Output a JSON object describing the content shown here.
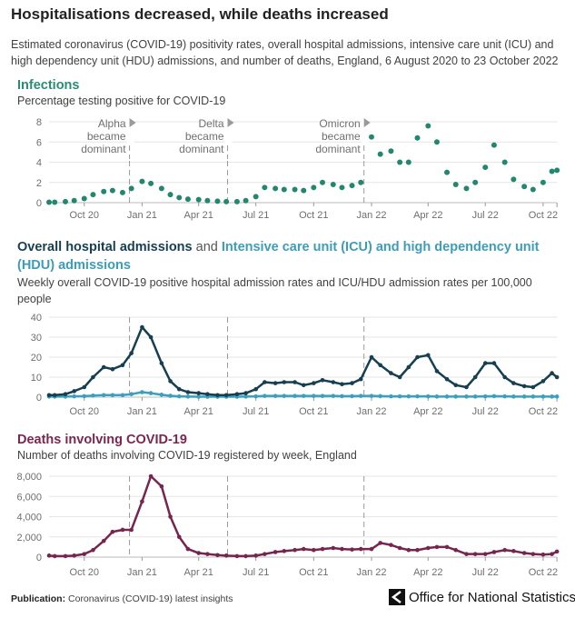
{
  "title": "Hospitalisations decreased, while deaths increased",
  "subtitle": "Estimated coronavirus (COVID-19) positivity rates, overall hospital admissions, intensive care unit (ICU) and high dependency unit (HDU) admissions, and number of deaths, England, 6 August 2020 to 23 October 2022",
  "panels": {
    "infections": {
      "title": "Infections",
      "subtitle": "Percentage testing positive for COVID-19"
    },
    "admissions": {
      "title_part1": "Overall hospital admissions",
      "title_and": "and",
      "title_part2": "Intensive care unit (ICU) and high dependency unit (HDU) admissions",
      "subtitle": "Weekly overall COVID-19 positive hospital admission rates and ICU/HDU admission rates per 100,000 people"
    },
    "deaths": {
      "title": "Deaths involving COVID-19",
      "subtitle": "Number of deaths involving COVID-19 registered by week, England"
    }
  },
  "footer": {
    "label": "Publication:",
    "text": "Coronavirus (COVID-19) latest insights",
    "logo_text": "Office for National Statistics"
  },
  "colors": {
    "infections": "#23876f",
    "admissions": "#163f52",
    "icu": "#3aa0c0",
    "deaths": "#76254f",
    "grid": "#e6e6e6",
    "dashed": "#9a9a9a"
  },
  "chart_data": [
    {
      "type": "scatter",
      "title": "Infections",
      "ylabel": "Percentage testing positive for COVID-19",
      "ylim": [
        0,
        8
      ],
      "yticks": [
        0,
        2,
        4,
        6,
        8
      ],
      "xticks": [
        {
          "date": "2020-10-01",
          "label": "Oct 20"
        },
        {
          "date": "2021-01-01",
          "label": "Jan 21"
        },
        {
          "date": "2021-04-01",
          "label": "Apr 21"
        },
        {
          "date": "2021-07-01",
          "label": "Jul 21"
        },
        {
          "date": "2021-10-01",
          "label": "Oct 21"
        },
        {
          "date": "2022-01-01",
          "label": "Jan 22"
        },
        {
          "date": "2022-04-01",
          "label": "Apr 22"
        },
        {
          "date": "2022-07-01",
          "label": "Jul 22"
        },
        {
          "date": "2022-10-01",
          "label": "Oct 22"
        }
      ],
      "xlim": [
        "2020-08-06",
        "2022-10-23"
      ],
      "annotations": [
        {
          "date": "2020-12-12",
          "lines": [
            "Alpha",
            "became",
            "dominant"
          ]
        },
        {
          "date": "2021-05-17",
          "lines": [
            "Delta",
            "became",
            "dominant"
          ]
        },
        {
          "date": "2021-12-20",
          "lines": [
            "Omicron",
            "became",
            "dominant"
          ]
        }
      ],
      "x": [
        "2020-08-06",
        "2020-08-15",
        "2020-09-01",
        "2020-09-15",
        "2020-10-01",
        "2020-10-15",
        "2020-11-01",
        "2020-11-15",
        "2020-12-01",
        "2020-12-15",
        "2021-01-01",
        "2021-01-15",
        "2021-02-01",
        "2021-02-15",
        "2021-03-01",
        "2021-03-15",
        "2021-04-01",
        "2021-04-15",
        "2021-05-01",
        "2021-05-15",
        "2021-06-01",
        "2021-06-15",
        "2021-07-01",
        "2021-07-15",
        "2021-08-01",
        "2021-08-15",
        "2021-09-01",
        "2021-09-15",
        "2021-10-01",
        "2021-10-15",
        "2021-11-01",
        "2021-11-15",
        "2021-12-01",
        "2021-12-15",
        "2022-01-01",
        "2022-01-15",
        "2022-02-01",
        "2022-02-15",
        "2022-03-01",
        "2022-03-15",
        "2022-04-01",
        "2022-04-15",
        "2022-05-01",
        "2022-05-15",
        "2022-06-01",
        "2022-06-15",
        "2022-07-01",
        "2022-07-15",
        "2022-08-01",
        "2022-08-15",
        "2022-09-01",
        "2022-09-15",
        "2022-10-01",
        "2022-10-15",
        "2022-10-23"
      ],
      "series": [
        {
          "name": "Infections",
          "values": [
            0.05,
            0.05,
            0.1,
            0.2,
            0.4,
            0.8,
            1.1,
            1.2,
            1.0,
            1.4,
            2.1,
            1.9,
            1.4,
            0.8,
            0.5,
            0.35,
            0.3,
            0.2,
            0.15,
            0.1,
            0.1,
            0.2,
            0.6,
            1.5,
            1.4,
            1.3,
            1.3,
            1.2,
            1.5,
            2.0,
            1.8,
            1.5,
            1.7,
            2.0,
            6.5,
            4.8,
            5.1,
            4.0,
            4.0,
            6.4,
            7.6,
            6.0,
            3.0,
            1.8,
            1.4,
            2.0,
            3.5,
            5.7,
            4.0,
            2.3,
            1.6,
            1.3,
            2.0,
            3.1,
            3.2
          ]
        }
      ]
    },
    {
      "type": "line",
      "title": "Overall hospital admissions and ICU/HDU admissions",
      "ylabel": "Rate per 100,000 people",
      "ylim": [
        0,
        40
      ],
      "yticks": [
        0,
        10,
        20,
        30,
        40
      ],
      "series": [
        {
          "name": "Overall hospital admissions",
          "values": [
            1,
            1,
            1.5,
            3,
            5,
            10,
            15,
            14,
            16,
            22,
            35,
            30,
            17,
            8,
            4,
            2.5,
            2,
            1.5,
            1,
            1,
            1.5,
            2,
            4,
            7.5,
            7,
            7.5,
            7.5,
            6,
            7,
            8.5,
            7.5,
            6.5,
            7,
            9,
            20,
            16,
            12,
            10,
            15,
            20,
            21,
            13,
            9,
            6,
            5,
            10,
            17,
            17,
            10,
            7,
            5.5,
            5,
            8,
            12,
            10
          ]
        },
        {
          "name": "ICU and HDU admissions",
          "values": [
            0.3,
            0.3,
            0.3,
            0.4,
            0.5,
            0.8,
            1,
            1,
            1,
            1.5,
            2.5,
            2,
            1.2,
            0.7,
            0.4,
            0.3,
            0.2,
            0.2,
            0.2,
            0.2,
            0.2,
            0.3,
            0.4,
            0.6,
            0.6,
            0.6,
            0.6,
            0.6,
            0.6,
            0.6,
            0.6,
            0.5,
            0.5,
            0.6,
            0.6,
            0.5,
            0.4,
            0.4,
            0.4,
            0.4,
            0.4,
            0.3,
            0.3,
            0.3,
            0.3,
            0.3,
            0.4,
            0.5,
            0.4,
            0.3,
            0.3,
            0.3,
            0.3,
            0.3,
            0.3
          ]
        }
      ]
    },
    {
      "type": "line",
      "title": "Deaths involving COVID-19",
      "ylabel": "Number of deaths",
      "ylim": [
        0,
        8000
      ],
      "yticks": [
        0,
        2000,
        4000,
        6000,
        8000
      ],
      "ytick_labels": [
        "0",
        "2,000",
        "4,000",
        "6,000",
        "8,000"
      ],
      "series": [
        {
          "name": "Deaths",
          "values": [
            150,
            100,
            100,
            150,
            300,
            700,
            1600,
            2500,
            2700,
            2700,
            5500,
            8000,
            7000,
            4000,
            2000,
            800,
            400,
            300,
            200,
            150,
            100,
            100,
            150,
            300,
            500,
            600,
            700,
            800,
            700,
            800,
            900,
            800,
            750,
            800,
            800,
            1400,
            1200,
            900,
            700,
            700,
            900,
            1000,
            1000,
            700,
            300,
            300,
            300,
            500,
            700,
            600,
            400,
            300,
            250,
            300,
            550
          ]
        }
      ]
    }
  ]
}
